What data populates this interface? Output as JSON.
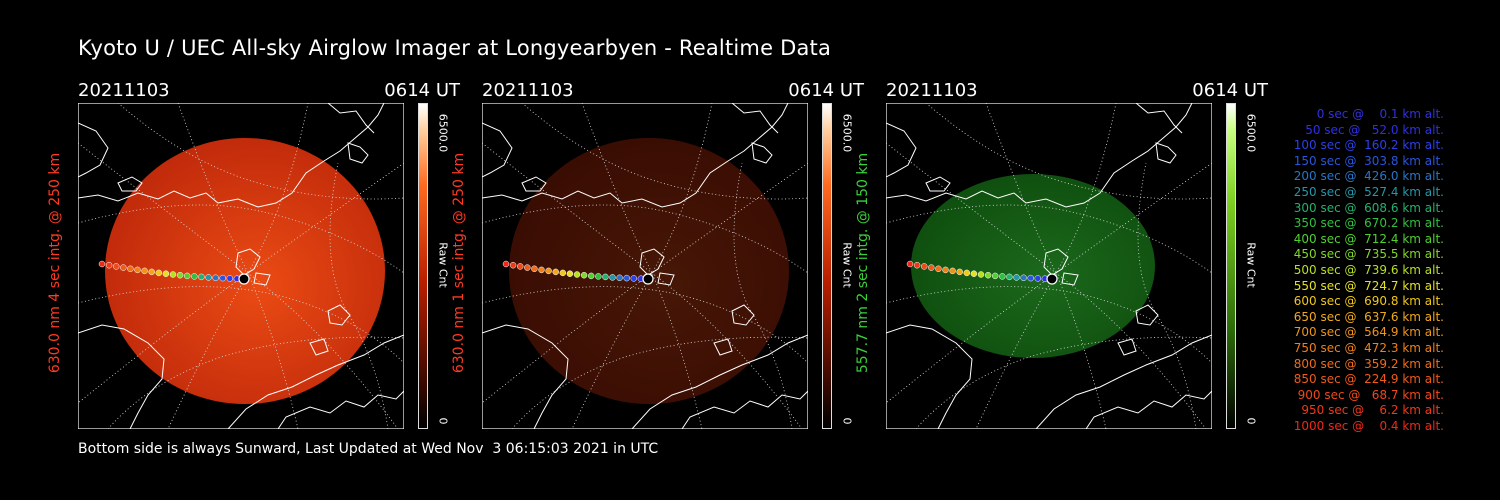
{
  "title": "Kyoto U / UEC All-sky Airglow Imager at Longyearbyen - Realtime Data",
  "panels": [
    {
      "date": "20211103",
      "time": "0614 UT",
      "side_label": "630.0 nm 4 sec intg. @ 250 km",
      "label_color": "#ff3a22",
      "cbar_max": "6500.0",
      "cbar_label": "Raw Cnt",
      "cbar_min": "0",
      "theme": "red",
      "brightness": 1.0
    },
    {
      "date": "20211103",
      "time": "0614 UT",
      "side_label": "630.0 nm 1 sec intg. @ 250 km",
      "label_color": "#ff3a22",
      "cbar_max": "6500.0",
      "cbar_label": "Raw Cnt",
      "cbar_min": "0",
      "theme": "red",
      "brightness": 0.3
    },
    {
      "date": "20211103",
      "time": "0614 UT",
      "side_label": "557.7 nm 2 sec intg. @ 150 km",
      "label_color": "#3ad03a",
      "cbar_max": "6500.0",
      "cbar_label": "Raw Cnt",
      "cbar_min": "0",
      "theme": "green",
      "brightness": 0.7
    }
  ],
  "footer": "Bottom side is always Sunward, Last Updated at Wed Nov  3 06:15:03 2021 in UTC",
  "legend": [
    {
      "text": "0 sec @    0.1 km alt.",
      "color": "#3030e0"
    },
    {
      "text": "50 sec @   52.0 km alt.",
      "color": "#2f2fe6"
    },
    {
      "text": "100 sec @  160.2 km alt.",
      "color": "#2c40e6"
    },
    {
      "text": "150 sec @  303.8 km alt.",
      "color": "#2a55dd"
    },
    {
      "text": "200 sec @  426.0 km alt.",
      "color": "#2875c8"
    },
    {
      "text": "250 sec @  527.4 km alt.",
      "color": "#2596a8"
    },
    {
      "text": "300 sec @  608.6 km alt.",
      "color": "#25b070"
    },
    {
      "text": "350 sec @  670.2 km alt.",
      "color": "#30c040"
    },
    {
      "text": "400 sec @  712.4 km alt.",
      "color": "#50d030"
    },
    {
      "text": "450 sec @  735.5 km alt.",
      "color": "#80d828"
    },
    {
      "text": "500 sec @  739.6 km alt.",
      "color": "#b8e020"
    },
    {
      "text": "550 sec @  724.7 km alt.",
      "color": "#e6e020"
    },
    {
      "text": "600 sec @  690.8 km alt.",
      "color": "#f0c818"
    },
    {
      "text": "650 sec @  637.6 km alt.",
      "color": "#f0aa18"
    },
    {
      "text": "700 sec @  564.9 km alt.",
      "color": "#f09418"
    },
    {
      "text": "750 sec @  472.3 km alt.",
      "color": "#f08018"
    },
    {
      "text": "800 sec @  359.2 km alt.",
      "color": "#f06c18"
    },
    {
      "text": "850 sec @  224.9 km alt.",
      "color": "#f05a18"
    },
    {
      "text": "900 sec @   68.7 km alt.",
      "color": "#f04818"
    },
    {
      "text": "950 sec @    6.2 km alt.",
      "color": "#f03818"
    },
    {
      "text": "1000 sec @    0.4 km alt.",
      "color": "#f02818"
    }
  ]
}
